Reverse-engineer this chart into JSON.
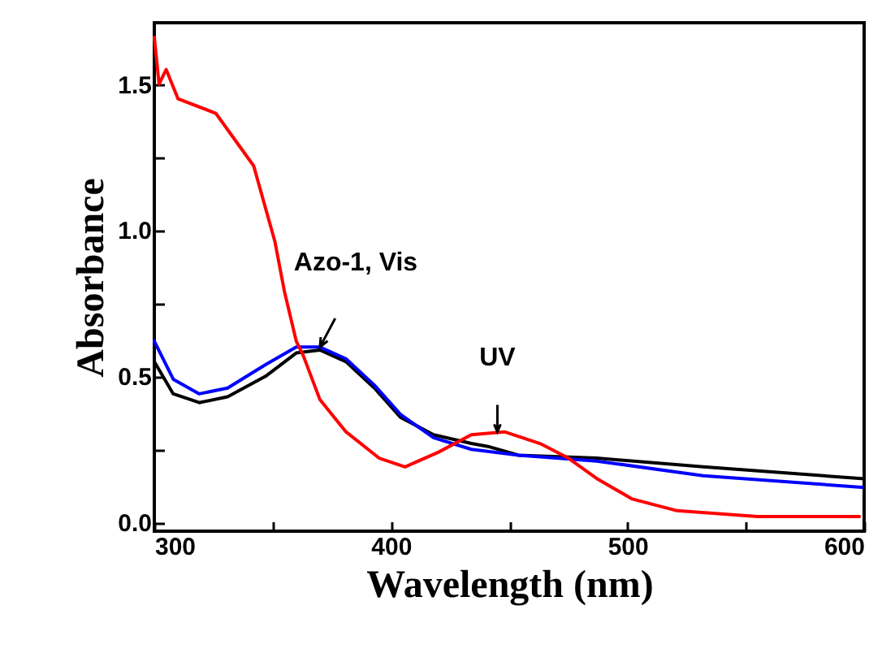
{
  "chart_data": {
    "type": "line",
    "xlabel": "Wavelength (nm)",
    "ylabel": "Absorbance",
    "xlim": [
      300,
      600
    ],
    "ylim": [
      -0.03,
      1.71
    ],
    "xticks": [
      300,
      {
        "value": 350,
        "label": null
      },
      400,
      {
        "value": 450,
        "label": null
      },
      500,
      {
        "value": 550,
        "label": null
      },
      600
    ],
    "yticks": [
      {
        "value": 0,
        "label": "0.0"
      },
      {
        "value": 0.25,
        "label": null
      },
      {
        "value": 0.5,
        "label": "0.5"
      },
      {
        "value": 0.75,
        "label": null
      },
      {
        "value": 1,
        "label": "1.0"
      },
      {
        "value": 1.25,
        "label": null
      },
      {
        "value": 1.5,
        "label": "1.5"
      }
    ],
    "grid": false,
    "line_style": "solid",
    "marker": "none",
    "series": [
      {
        "color": "#000000",
        "x": [
          300,
          308,
          319,
          331,
          347,
          360,
          370,
          381,
          393,
          404,
          418,
          434,
          441,
          454,
          487,
          532,
          599
        ],
        "values": [
          0.55,
          0.44,
          0.41,
          0.43,
          0.5,
          0.58,
          0.59,
          0.55,
          0.46,
          0.36,
          0.3,
          0.27,
          0.26,
          0.23,
          0.22,
          0.19,
          0.15
        ]
      },
      {
        "color": "#0000ff",
        "x": [
          300,
          308,
          319,
          331,
          347,
          360,
          370,
          381,
          393,
          404,
          418,
          434,
          454,
          487,
          532,
          599
        ],
        "values": [
          0.62,
          0.49,
          0.44,
          0.46,
          0.54,
          0.6,
          0.6,
          0.56,
          0.47,
          0.37,
          0.29,
          0.25,
          0.23,
          0.21,
          0.16,
          0.12
        ]
      },
      {
        "color": "#ff0000",
        "x": [
          300,
          302,
          305,
          310,
          326,
          342,
          351,
          355,
          360,
          363,
          370,
          381,
          395,
          406,
          420,
          434,
          448,
          463,
          475,
          487,
          502,
          521,
          555,
          598
        ],
        "values": [
          1.66,
          1.5,
          1.55,
          1.45,
          1.4,
          1.22,
          0.96,
          0.79,
          0.62,
          0.57,
          0.42,
          0.31,
          0.22,
          0.19,
          0.24,
          0.3,
          0.31,
          0.27,
          0.22,
          0.15,
          0.08,
          0.04,
          0.02,
          0.02
        ]
      }
    ],
    "annotations": [
      {
        "text": "Azo-1, Vis",
        "x": 370,
        "y": 0.6
      },
      {
        "text": "UV",
        "x": 445,
        "y": 0.31
      }
    ]
  }
}
